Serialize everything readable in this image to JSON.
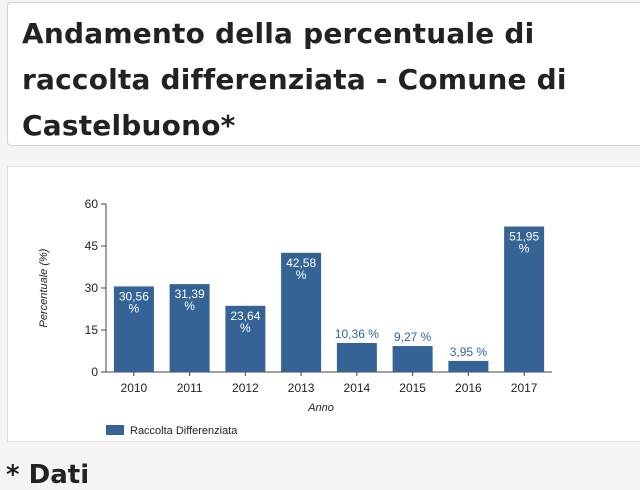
{
  "page": {
    "title": "Andamento della percentuale di raccolta differenziata - Comune di Castelbuono*",
    "footer_text": "* Dati"
  },
  "colors": {
    "bar": "#356396",
    "label_inside": "#ffffff",
    "label_outside": "#356396",
    "axis": "#444444"
  },
  "chart_data": {
    "type": "bar",
    "categories": [
      "2010",
      "2011",
      "2012",
      "2013",
      "2014",
      "2015",
      "2016",
      "2017"
    ],
    "values": [
      30.56,
      31.39,
      23.64,
      42.58,
      10.36,
      9.27,
      3.95,
      51.95
    ],
    "data_labels": [
      "30,56 %",
      "31,39 %",
      "23,64 %",
      "42,58 %",
      "10,36 %",
      "9,27 %",
      "3,95 %",
      "51,95 %"
    ],
    "label_outside": [
      false,
      false,
      false,
      false,
      true,
      true,
      true,
      false
    ],
    "title": "",
    "xlabel": "Anno",
    "ylabel": "Percentuale (%)",
    "ylim": [
      0,
      60
    ],
    "yticks": [
      0,
      15,
      30,
      45,
      60
    ],
    "grid": false,
    "legend": {
      "position": "bottom-left",
      "entries": [
        {
          "name": "Raccolta Differenziata"
        }
      ]
    }
  }
}
